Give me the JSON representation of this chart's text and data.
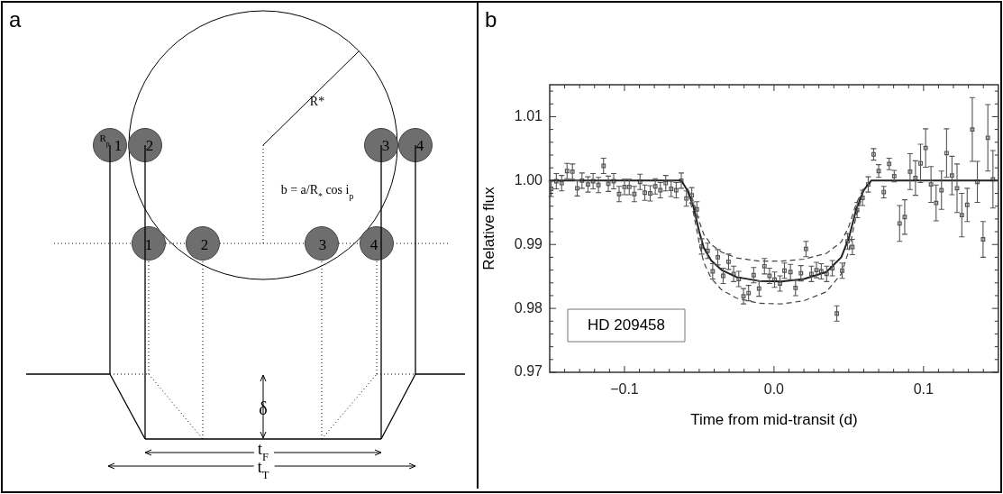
{
  "chart_data": [
    {
      "type": "other",
      "title": "a",
      "annotations": [
        "R$_{p}$",
        "R*",
        "1",
        "2",
        "3",
        "4",
        "1",
        "2",
        "3",
        "4",
        "b = a/R$_{*}$ cos i$_{p}$",
        "δ",
        "t$_{F}$",
        "t$_{T}$"
      ]
    },
    {
      "type": "scatter",
      "title": "b",
      "xlabel": "Time from mid-transit (d)",
      "ylabel": "Relative flux",
      "annotations": [
        "HD 209458"
      ],
      "grid": false,
      "xlim": [
        -0.15,
        0.15
      ],
      "ylim": [
        0.97,
        1.015
      ],
      "xticks": [
        {
          "value": -0.14,
          "label": null
        },
        {
          "value": -0.13,
          "label": null
        },
        {
          "value": -0.12,
          "label": null
        },
        {
          "value": -0.11,
          "label": null
        },
        {
          "value": -0.1,
          "label": "−0.1"
        },
        {
          "value": -0.09,
          "label": null
        },
        {
          "value": -0.08,
          "label": null
        },
        {
          "value": -0.07,
          "label": null
        },
        {
          "value": -0.06,
          "label": null
        },
        {
          "value": -0.05,
          "label": null
        },
        {
          "value": -0.04,
          "label": null
        },
        {
          "value": -0.03,
          "label": null
        },
        {
          "value": -0.02,
          "label": null
        },
        {
          "value": -0.01,
          "label": null
        },
        {
          "value": 0,
          "label": "0.0"
        },
        {
          "value": 0.01,
          "label": null
        },
        {
          "value": 0.02,
          "label": null
        },
        {
          "value": 0.03,
          "label": null
        },
        {
          "value": 0.04,
          "label": null
        },
        {
          "value": 0.05,
          "label": null
        },
        {
          "value": 0.06,
          "label": null
        },
        {
          "value": 0.07,
          "label": null
        },
        {
          "value": 0.08,
          "label": null
        },
        {
          "value": 0.09,
          "label": null
        },
        {
          "value": 0.1,
          "label": "0.1"
        },
        {
          "value": 0.11,
          "label": null
        },
        {
          "value": 0.12,
          "label": null
        },
        {
          "value": 0.13,
          "label": null
        },
        {
          "value": 0.14,
          "label": null
        }
      ],
      "yticks": [
        {
          "value": 0.97,
          "label": "0.97"
        },
        {
          "value": 0.972,
          "label": null
        },
        {
          "value": 0.974,
          "label": null
        },
        {
          "value": 0.976,
          "label": null
        },
        {
          "value": 0.978,
          "label": null
        },
        {
          "value": 0.98,
          "label": "0.98"
        },
        {
          "value": 0.982,
          "label": null
        },
        {
          "value": 0.984,
          "label": null
        },
        {
          "value": 0.986,
          "label": null
        },
        {
          "value": 0.988,
          "label": null
        },
        {
          "value": 0.99,
          "label": "0.99"
        },
        {
          "value": 0.992,
          "label": null
        },
        {
          "value": 0.994,
          "label": null
        },
        {
          "value": 0.996,
          "label": null
        },
        {
          "value": 0.998,
          "label": null
        },
        {
          "value": 1.0,
          "label": "1.00"
        },
        {
          "value": 1.002,
          "label": null
        },
        {
          "value": 1.004,
          "label": null
        },
        {
          "value": 1.006,
          "label": null
        },
        {
          "value": 1.008,
          "label": null
        },
        {
          "value": 1.01,
          "label": "1.01"
        },
        {
          "value": 1.012,
          "label": null
        },
        {
          "value": 1.014,
          "label": null
        }
      ],
      "series": [
        {
          "type": "scatter",
          "color": "#555555",
          "marker": "square",
          "x": [
            -0.149,
            -0.1456,
            -0.142,
            -0.1384,
            -0.1348,
            -0.1316,
            -0.1284,
            -0.1244,
            -0.121,
            -0.1174,
            -0.114,
            -0.1108,
            -0.1072,
            -0.1036,
            -0.1,
            -0.0968,
            -0.0934,
            -0.0896,
            -0.0864,
            -0.0828,
            -0.0794,
            -0.076,
            -0.0724,
            -0.0688,
            -0.0654,
            -0.062,
            -0.0586,
            -0.055,
            -0.0516,
            -0.0484,
            -0.0444,
            -0.041,
            -0.0376,
            -0.034,
            -0.0304,
            -0.027,
            -0.0236,
            -0.0204,
            -0.017,
            -0.0136,
            -0.01,
            -0.0064,
            -0.003,
            0.0004,
            0.004,
            0.007,
            0.011,
            0.0144,
            0.018,
            0.0214,
            0.025,
            0.0284,
            0.0316,
            0.0352,
            0.039,
            0.042,
            0.0456,
            0.0492,
            0.0524,
            0.0556,
            0.0592,
            0.063,
            0.0666,
            0.07,
            0.0734,
            0.077,
            0.0804,
            0.084,
            0.0874,
            0.091,
            0.0946,
            0.098,
            0.1014,
            0.105,
            0.1084,
            0.112,
            0.1154,
            0.119,
            0.1224,
            0.1256,
            0.1292,
            0.1326,
            0.136,
            0.1398,
            0.143,
            0.1464
          ],
          "values": [
            0.9987,
            0.9999,
            0.9996,
            1.0015,
            1.0014,
            0.9988,
            1.0,
            0.9994,
            0.9999,
            0.9993,
            1.0023,
            0.9995,
            0.9999,
            0.9979,
            0.999,
            0.999,
            0.9979,
            0.9998,
            0.9981,
            0.998,
            0.9991,
            0.9985,
            0.9996,
            0.9987,
            0.9985,
            1.0,
            0.9972,
            0.9977,
            0.9955,
            0.9897,
            0.989,
            0.9858,
            0.988,
            0.9851,
            0.9873,
            0.9854,
            0.9846,
            0.9819,
            0.9824,
            0.9852,
            0.9831,
            0.9866,
            0.9851,
            0.9845,
            0.9839,
            0.9859,
            0.9857,
            0.9832,
            0.9855,
            0.9893,
            0.9854,
            0.986,
            0.9858,
            0.9854,
            0.9863,
            0.9792,
            0.9859,
            0.9905,
            0.9896,
            0.9954,
            0.9973,
            0.9994,
            1.0041,
            1.0015,
            0.9982,
            1.0026,
            1.0007,
            0.9933,
            0.9943,
            1.0014,
            1.0004,
            1.0027,
            1.0051,
            0.9994,
            0.9965,
            0.9985,
            1.0043,
            1.0008,
            0.9988,
            0.9946,
            0.9962,
            1.008,
            0.9998,
            0.9908,
            1.0067,
            1.0002
          ],
          "errors": [
            0.0012,
            0.0012,
            0.0012,
            0.0012,
            0.0012,
            0.0012,
            0.0012,
            0.0012,
            0.0012,
            0.0012,
            0.0012,
            0.0012,
            0.0012,
            0.0012,
            0.0012,
            0.0012,
            0.0012,
            0.0012,
            0.0012,
            0.0012,
            0.0012,
            0.0012,
            0.0012,
            0.0012,
            0.0012,
            0.0012,
            0.0012,
            0.0012,
            0.0012,
            0.0012,
            0.0012,
            0.0012,
            0.0012,
            0.0012,
            0.0012,
            0.0012,
            0.0012,
            0.0012,
            0.0012,
            0.0012,
            0.0012,
            0.0012,
            0.0012,
            0.0012,
            0.0012,
            0.0012,
            0.0012,
            0.0012,
            0.0012,
            0.0012,
            0.0012,
            0.0012,
            0.0012,
            0.0012,
            0.0012,
            0.0012,
            0.0012,
            0.0012,
            0.0012,
            0.0012,
            0.0012,
            0.0012,
            0.0009,
            0.001,
            0.0009,
            0.0009,
            0.0009,
            0.0028,
            0.0027,
            0.0028,
            0.0027,
            0.003,
            0.003,
            0.0028,
            0.0028,
            0.003,
            0.0038,
            0.003,
            0.0038,
            0.0034,
            0.0026,
            0.005,
            0.0032,
            0.0028,
            0.0052,
            0.0045
          ]
        },
        {
          "type": "line",
          "color": "#222222",
          "line_style": "solid",
          "marker": "none",
          "x": [
            -0.15,
            -0.062,
            -0.058,
            -0.054,
            -0.05,
            -0.047,
            -0.042,
            -0.035,
            -0.025,
            -0.01,
            0.005,
            0.02,
            0.035,
            0.045,
            0.05,
            0.055,
            0.06,
            0.065,
            0.15
          ],
          "values": [
            1.0,
            1.0,
            0.9985,
            0.996,
            0.992,
            0.9895,
            0.9875,
            0.986,
            0.9849,
            0.9843,
            0.9842,
            0.9846,
            0.9857,
            0.988,
            0.991,
            0.9955,
            0.9985,
            1.0,
            1.0
          ]
        },
        {
          "type": "line",
          "color": "#444444",
          "line_style": "dashed",
          "marker": "none",
          "x": [
            -0.058,
            -0.054,
            -0.05,
            -0.047,
            -0.042,
            -0.035,
            -0.025,
            -0.01,
            0.005,
            0.02,
            0.035,
            0.045,
            0.05,
            0.055,
            0.06
          ],
          "values": [
            0.9988,
            0.9968,
            0.9936,
            0.9916,
            0.99,
            0.9888,
            0.9879,
            0.9874,
            0.9874,
            0.9877,
            0.9886,
            0.9904,
            0.9928,
            0.9964,
            0.9988
          ]
        },
        {
          "type": "line",
          "color": "#444444",
          "line_style": "dashed",
          "marker": "none",
          "x": [
            -0.056,
            -0.054,
            -0.05,
            -0.047,
            -0.042,
            -0.035,
            -0.025,
            -0.01,
            0.005,
            0.02,
            0.035,
            0.045,
            0.05,
            0.055,
            0.058
          ],
          "values": [
            0.9966,
            0.9951,
            0.9902,
            0.9872,
            0.9847,
            0.9829,
            0.9816,
            0.9808,
            0.9807,
            0.9812,
            0.9826,
            0.9854,
            0.989,
            0.9945,
            0.9968
          ]
        }
      ]
    }
  ]
}
